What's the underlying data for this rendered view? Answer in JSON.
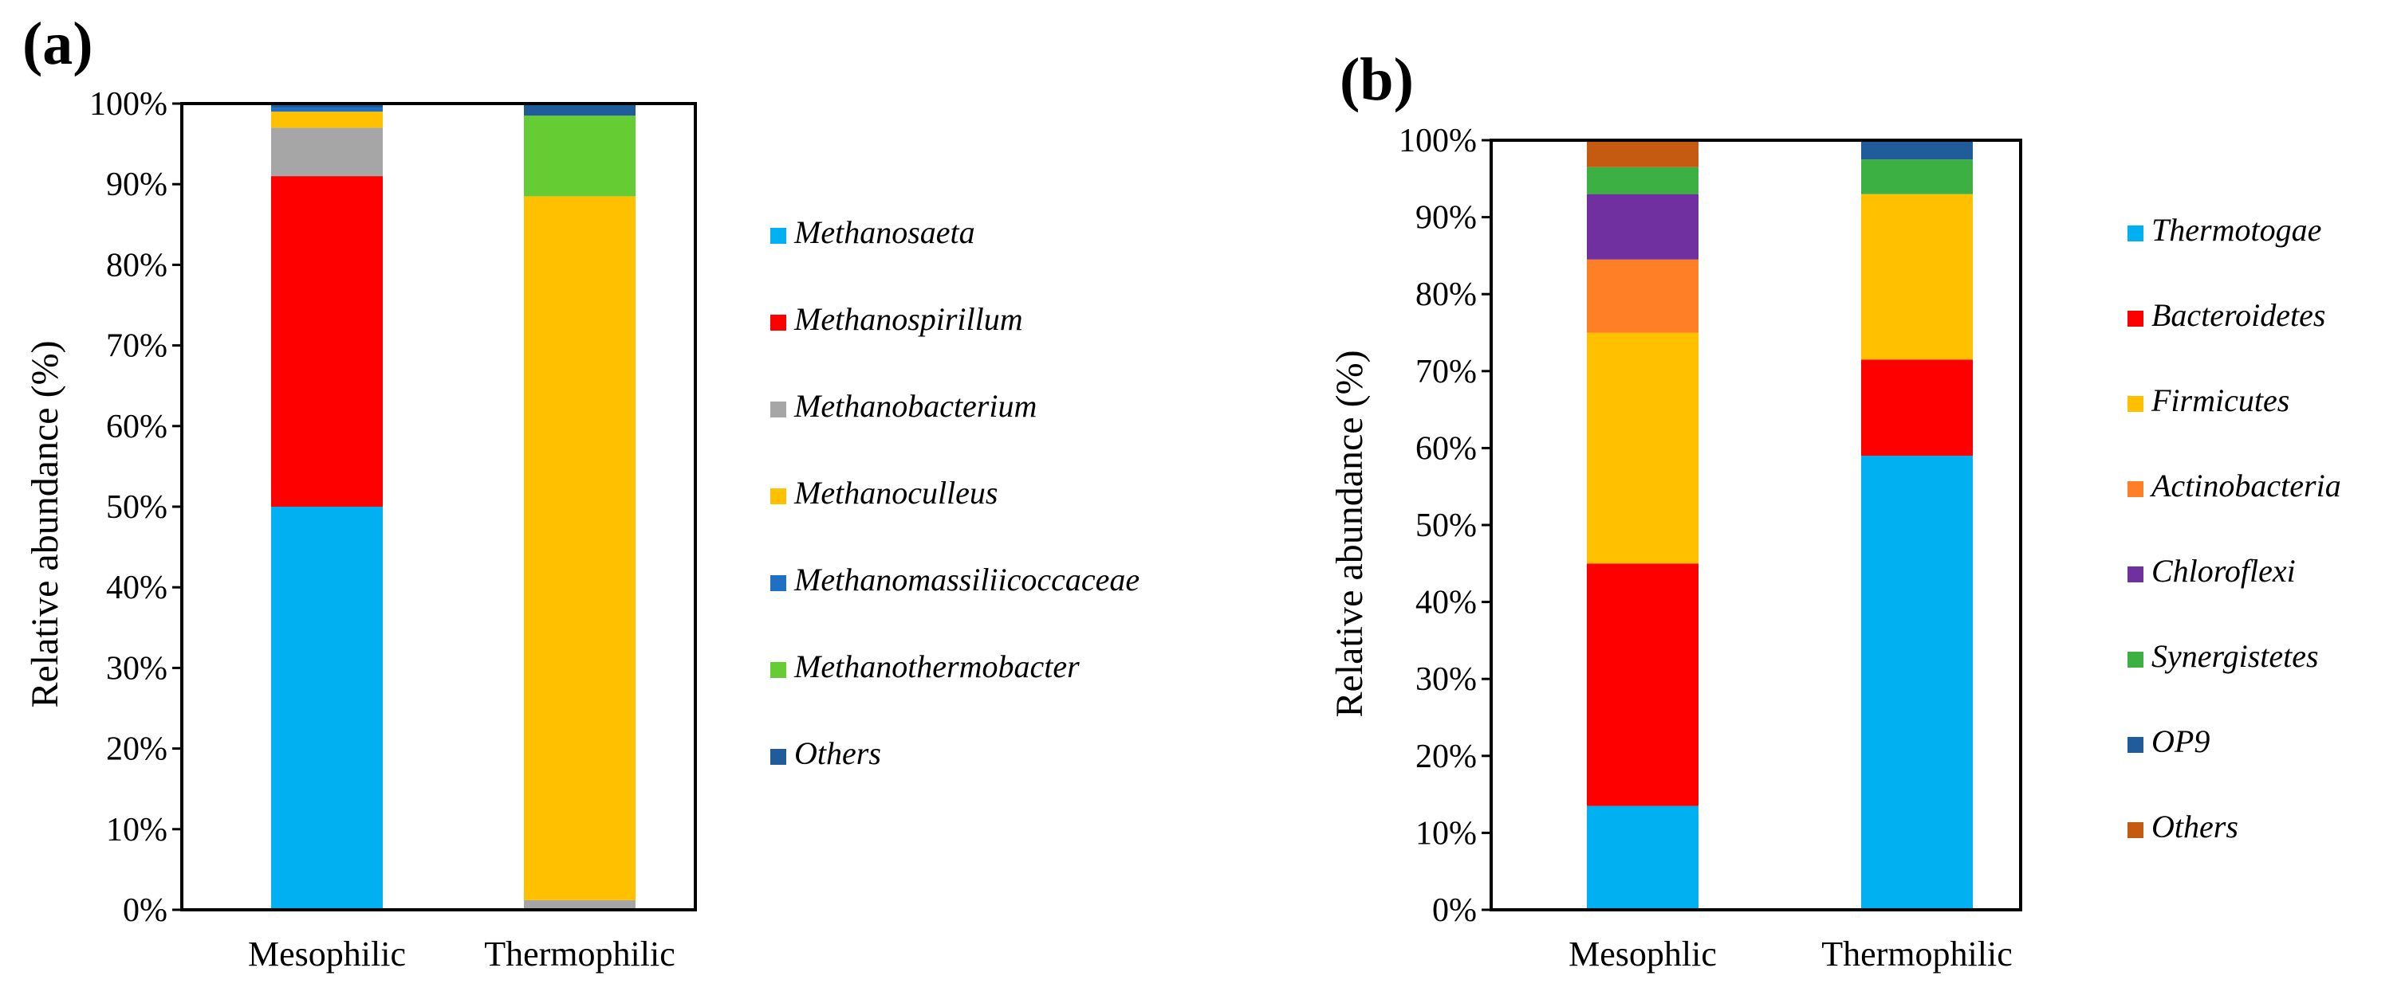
{
  "chart_data": [
    {
      "panel": "(a)",
      "type": "bar",
      "stacked": true,
      "ylabel": "Relative abundance (%)",
      "ylim": [
        0,
        100
      ],
      "yticks": [
        "0%",
        "10%",
        "20%",
        "30%",
        "40%",
        "50%",
        "60%",
        "70%",
        "80%",
        "90%",
        "100%"
      ],
      "categories": [
        "Mesophilic",
        "Thermophilic"
      ],
      "series": [
        {
          "name": "Methanosaeta",
          "color": "#00b0f0",
          "values": [
            50,
            0
          ]
        },
        {
          "name": "Methanospirillum",
          "color": "#ff0000",
          "values": [
            41,
            0
          ]
        },
        {
          "name": "Methanobacterium",
          "color": "#a6a6a6",
          "values": [
            6,
            1.2
          ]
        },
        {
          "name": "Methanoculleus",
          "color": "#ffc000",
          "values": [
            2,
            87.3
          ]
        },
        {
          "name": "Methanomassiliicoccaceae",
          "color": "#1f6fc5",
          "values": [
            0.5,
            0
          ]
        },
        {
          "name": "Methanothermobacter",
          "color": "#66cc33",
          "values": [
            0,
            10
          ]
        },
        {
          "name": "Others",
          "color": "#1f5c99",
          "values": [
            0.5,
            1.5
          ]
        }
      ]
    },
    {
      "panel": "(b)",
      "type": "bar",
      "stacked": true,
      "ylabel": "Relative abundance (%)",
      "ylim": [
        0,
        100
      ],
      "yticks": [
        "0%",
        "10%",
        "20%",
        "30%",
        "40%",
        "50%",
        "60%",
        "70%",
        "80%",
        "90%",
        "100%"
      ],
      "categories": [
        "Mesophlic",
        "Thermophilic"
      ],
      "series": [
        {
          "name": "Thermotogae",
          "color": "#00b0f0",
          "values": [
            13.5,
            59
          ]
        },
        {
          "name": "Bacteroidetes",
          "color": "#ff0000",
          "values": [
            31.5,
            12.5
          ]
        },
        {
          "name": "Firmicutes",
          "color": "#ffc000",
          "values": [
            30,
            21.5
          ]
        },
        {
          "name": "Actinobacteria",
          "color": "#ff7f27",
          "values": [
            9.5,
            0
          ]
        },
        {
          "name": "Chloroflexi",
          "color": "#7030a0",
          "values": [
            8.5,
            0
          ]
        },
        {
          "name": "Synergistetes",
          "color": "#3cb043",
          "values": [
            3.5,
            4.5
          ]
        },
        {
          "name": "OP9",
          "color": "#1f5c99",
          "values": [
            0,
            2.5
          ]
        },
        {
          "name": "Others",
          "color": "#c55a11",
          "values": [
            3.5,
            0
          ]
        }
      ]
    }
  ]
}
